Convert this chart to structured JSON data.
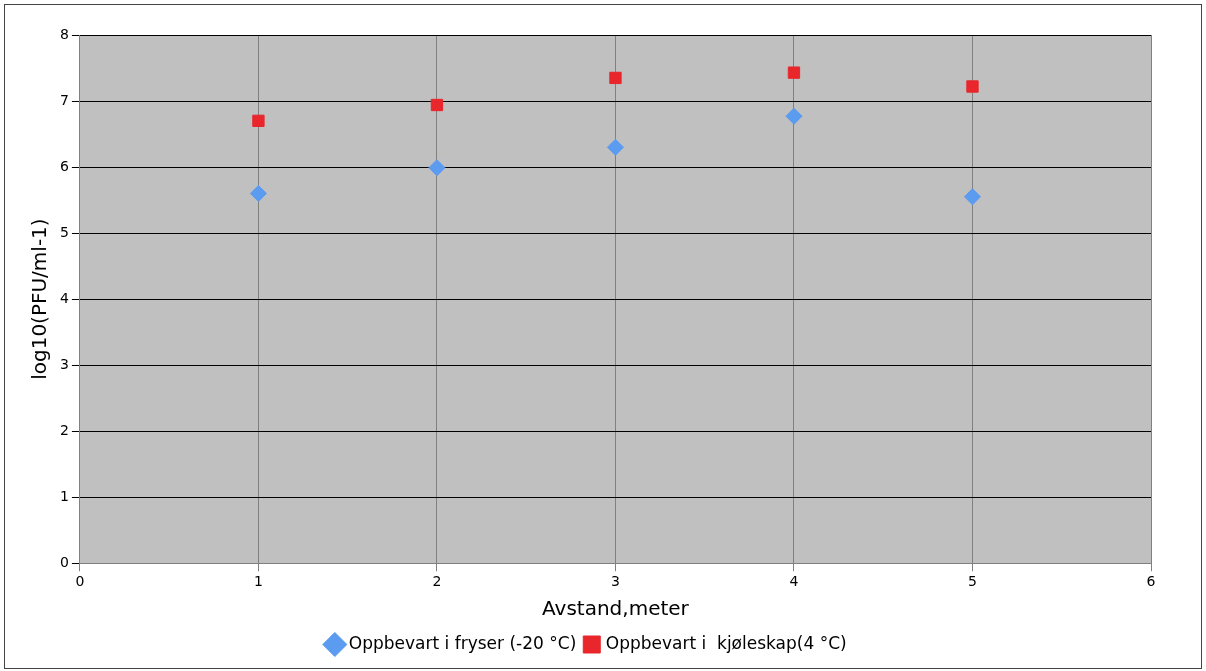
{
  "chart_data": {
    "type": "scatter",
    "xlabel": "Avstand,meter",
    "ylabel": "log10(PFU/ml-1)",
    "x": [
      1,
      2,
      3,
      4,
      5
    ],
    "series": [
      {
        "name": "Oppbevart i fryser (-20 °C)",
        "color": "#5b9bf0",
        "marker": "diamond",
        "values": [
          5.6,
          5.99,
          6.3,
          6.77,
          5.55
        ]
      },
      {
        "name": "Oppbevart i  kjøleskap(4 °C)",
        "color": "#e8262b",
        "marker": "square",
        "values": [
          6.7,
          6.94,
          7.35,
          7.43,
          7.22
        ]
      }
    ],
    "xlim": [
      0,
      6
    ],
    "xticks": [
      0,
      1,
      2,
      3,
      4,
      5,
      6
    ],
    "ylim": [
      0,
      8
    ],
    "yticks": [
      0,
      1,
      2,
      3,
      4,
      5,
      6,
      7,
      8
    ],
    "grid": true,
    "legend": "bottom"
  }
}
